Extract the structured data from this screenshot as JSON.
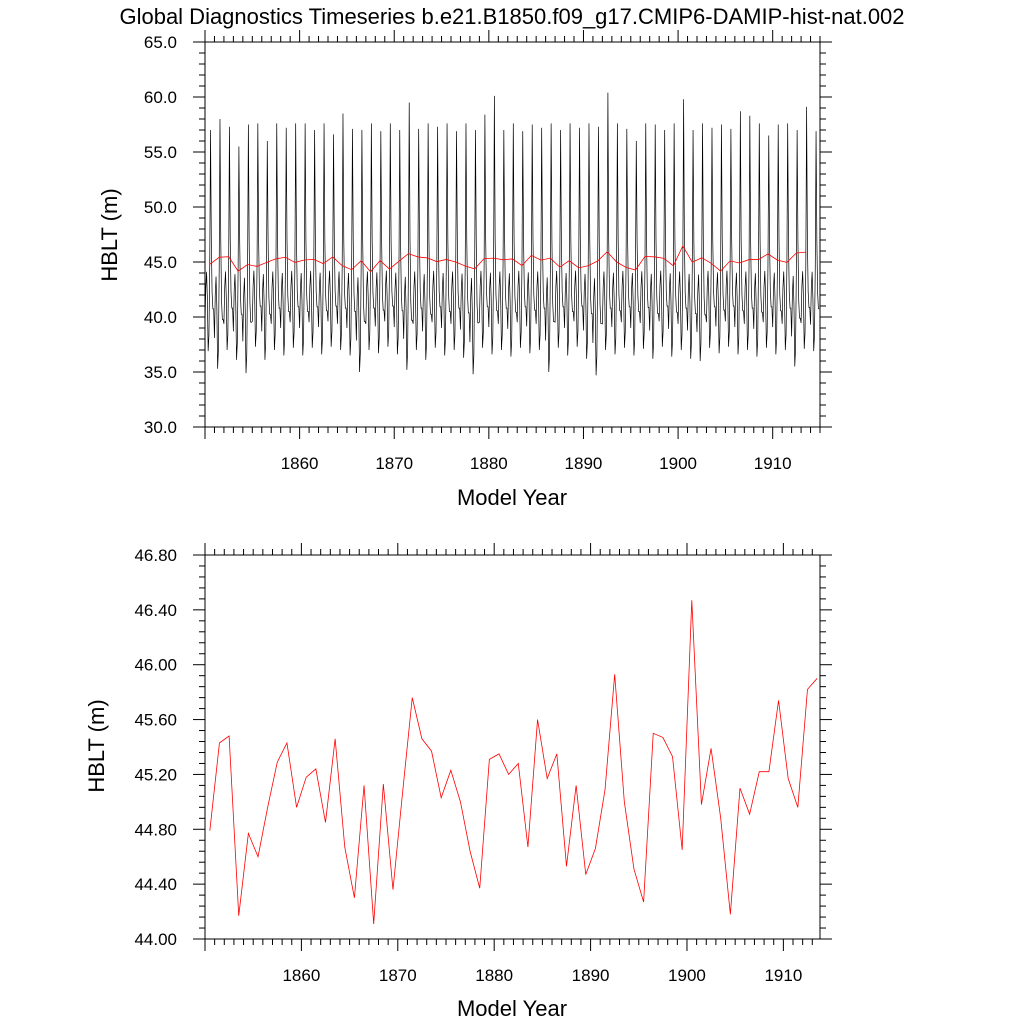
{
  "title": "Global Diagnostics Timeseries b.e21.B1850.f09_g17.CMIP6-DAMIP-hist-nat.002",
  "colors": {
    "monthly": "#000000",
    "annual": "#ff0000",
    "axis": "#000000"
  },
  "chart_data": [
    {
      "type": "line",
      "xlabel": "Model Year",
      "ylabel": "HBLT (m)",
      "xlim": [
        1850,
        1915
      ],
      "ylim": [
        30.0,
        65.0
      ],
      "x_ticks": [
        1860,
        1870,
        1880,
        1890,
        1900,
        1910
      ],
      "x_tick_labels": [
        "1860",
        "1870",
        "1880",
        "1890",
        "1900",
        "1910"
      ],
      "y_ticks": [
        30,
        35,
        40,
        45,
        50,
        55,
        60,
        65
      ],
      "y_tick_labels": [
        "30.0",
        "35.0",
        "40.0",
        "45.0",
        "50.0",
        "55.0",
        "60.0",
        "65.0"
      ],
      "grid": false,
      "series": [
        {
          "kind": "monthly",
          "x_start": 1850.0,
          "x_step": 0.0833333,
          "seasonal_cycle": [
            39.0,
            42.5,
            44.0,
            41.5,
            36.5,
            38.0,
            44.5,
            57.0,
            47.0,
            42.0,
            40.5,
            40.5
          ],
          "seasonal_maxima": [
            57.0,
            58.0,
            57.3,
            55.5,
            57.5,
            57.6,
            56.0,
            57.6,
            57.2,
            57.6,
            57.6,
            57.0,
            57.6,
            56.6,
            58.5,
            57.1,
            57.0,
            57.6,
            56.9,
            57.6,
            57.0,
            59.5,
            57.1,
            57.6,
            57.3,
            57.6,
            56.9,
            57.6,
            57.0,
            58.4,
            60.1,
            57.0,
            57.6,
            56.9,
            57.5,
            57.2,
            57.6,
            57.0,
            57.6,
            57.2,
            57.6,
            57.3,
            60.4,
            57.6,
            57.1,
            56.0,
            57.6,
            57.5,
            57.0,
            57.6,
            59.8,
            57.0,
            57.6,
            57.2,
            57.5,
            57.1,
            58.7,
            58.3,
            57.6,
            56.5,
            57.5,
            57.6,
            57.0,
            59.1,
            56.9
          ],
          "seasonal_minima": [
            36.9,
            35.3,
            37.0,
            36.1,
            34.9,
            37.3,
            36.1,
            37.0,
            36.5,
            37.2,
            36.5,
            37.2,
            36.6,
            37.3,
            37.0,
            36.5,
            35.0,
            37.0,
            36.7,
            37.3,
            36.6,
            35.2,
            37.0,
            36.1,
            37.2,
            36.5,
            37.0,
            36.3,
            34.8,
            37.2,
            36.6,
            37.0,
            36.4,
            37.2,
            36.7,
            37.0,
            35.0,
            37.2,
            36.5,
            37.3,
            36.2,
            34.7,
            37.0,
            36.6,
            37.2,
            36.5,
            37.1,
            36.2,
            37.3,
            36.4,
            37.0,
            36.2,
            36.0,
            37.2,
            36.7,
            37.3,
            36.6,
            37.0,
            36.4,
            37.2,
            36.6,
            37.0,
            35.5,
            37.1,
            36.9
          ]
        },
        {
          "kind": "annual",
          "x_start": 1850.5,
          "x_step": 1.0,
          "values": [
            44.79,
            45.43,
            45.48,
            44.17,
            44.77,
            44.6,
            44.96,
            45.29,
            45.43,
            44.96,
            45.18,
            45.24,
            44.85,
            45.46,
            44.67,
            44.3,
            45.12,
            44.11,
            45.13,
            44.36,
            45.07,
            45.76,
            45.46,
            45.37,
            45.03,
            45.23,
            45.0,
            44.64,
            44.37,
            45.31,
            45.35,
            45.2,
            45.28,
            44.67,
            45.6,
            45.17,
            45.35,
            44.53,
            45.12,
            44.47,
            44.66,
            45.09,
            45.93,
            45.0,
            44.51,
            44.27,
            45.5,
            45.47,
            45.33,
            44.65,
            46.47,
            44.98,
            45.39,
            44.88,
            44.18,
            45.1,
            44.91,
            45.22,
            45.22,
            45.74,
            45.17,
            44.96,
            45.82,
            45.9
          ]
        }
      ]
    },
    {
      "type": "line",
      "xlabel": "Model Year",
      "ylabel": "HBLT (m)",
      "xlim": [
        1850,
        1913.8
      ],
      "ylim": [
        44.0,
        46.8
      ],
      "x_ticks": [
        1860,
        1870,
        1880,
        1890,
        1900,
        1910
      ],
      "x_tick_labels": [
        "1860",
        "1870",
        "1880",
        "1890",
        "1900",
        "1910"
      ],
      "y_ticks": [
        44.0,
        44.4,
        44.8,
        45.2,
        45.6,
        46.0,
        46.4,
        46.8
      ],
      "y_tick_labels": [
        "44.00",
        "44.40",
        "44.80",
        "45.20",
        "45.60",
        "46.00",
        "46.40",
        "46.80"
      ],
      "grid": false,
      "series": [
        {
          "kind": "annual",
          "x_start": 1850.5,
          "x_step": 1.0,
          "values": [
            44.79,
            45.43,
            45.48,
            44.17,
            44.77,
            44.6,
            44.96,
            45.29,
            45.43,
            44.96,
            45.18,
            45.24,
            44.85,
            45.46,
            44.67,
            44.3,
            45.12,
            44.11,
            45.13,
            44.36,
            45.07,
            45.76,
            45.46,
            45.37,
            45.03,
            45.23,
            45.0,
            44.64,
            44.37,
            45.31,
            45.35,
            45.2,
            45.28,
            44.67,
            45.6,
            45.17,
            45.35,
            44.53,
            45.12,
            44.47,
            44.66,
            45.09,
            45.93,
            45.0,
            44.51,
            44.27,
            45.5,
            45.47,
            45.33,
            44.65,
            46.47,
            44.98,
            45.39,
            44.88,
            44.18,
            45.1,
            44.91,
            45.22,
            45.22,
            45.74,
            45.17,
            44.96,
            45.82,
            45.9
          ]
        }
      ]
    }
  ]
}
